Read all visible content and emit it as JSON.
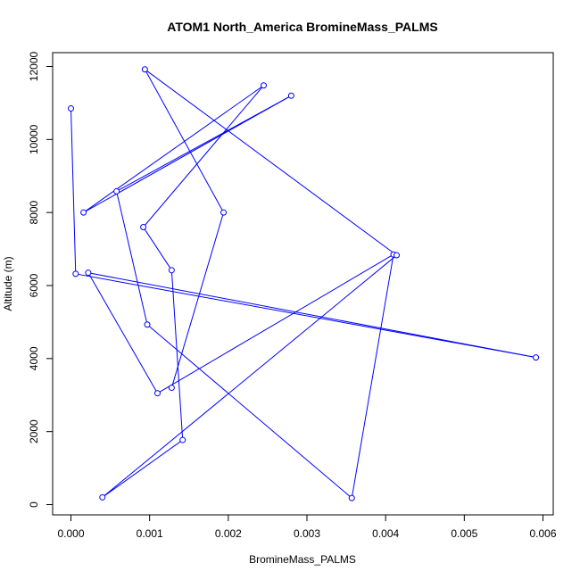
{
  "chart_data": {
    "type": "line",
    "title": "ATOM1 North_America BromineMass_PALMS",
    "xlabel": "BromineMass_PALMS",
    "ylabel": "Altitude (m)",
    "xlim": [
      0,
      0.006
    ],
    "ylim": [
      0,
      12000
    ],
    "xticks": [
      {
        "value": 0,
        "label": "0.000"
      },
      {
        "value": 0.001,
        "label": "0.001"
      },
      {
        "value": 0.002,
        "label": "0.002"
      },
      {
        "value": 0.003,
        "label": "0.003"
      },
      {
        "value": 0.004,
        "label": "0.004"
      },
      {
        "value": 0.005,
        "label": "0.005"
      },
      {
        "value": 0.006,
        "label": "0.006"
      }
    ],
    "yticks": [
      {
        "value": 0,
        "label": "0"
      },
      {
        "value": 2000,
        "label": "2000"
      },
      {
        "value": 4000,
        "label": "4000"
      },
      {
        "value": 6000,
        "label": "6000"
      },
      {
        "value": 8000,
        "label": "8000"
      },
      {
        "value": 10000,
        "label": "10000"
      },
      {
        "value": 12000,
        "label": "12000"
      }
    ],
    "grid": false,
    "color": "#0000ff",
    "series": [
      {
        "x": [
          0.0,
          6e-05,
          0.00591,
          0.00022,
          0.0011,
          0.0041,
          0.00357,
          0.00097,
          0.00058,
          0.0028,
          0.00016,
          0.00245,
          0.00092,
          0.00128,
          0.00142,
          0.0004,
          0.00414,
          0.00094,
          0.00194,
          0.00128
        ],
        "y": [
          10850,
          6320,
          4030,
          6350,
          3050,
          6850,
          180,
          4930,
          8580,
          11200,
          8000,
          11480,
          7600,
          6420,
          1770,
          200,
          6830,
          11920,
          8000,
          3200
        ]
      }
    ]
  }
}
